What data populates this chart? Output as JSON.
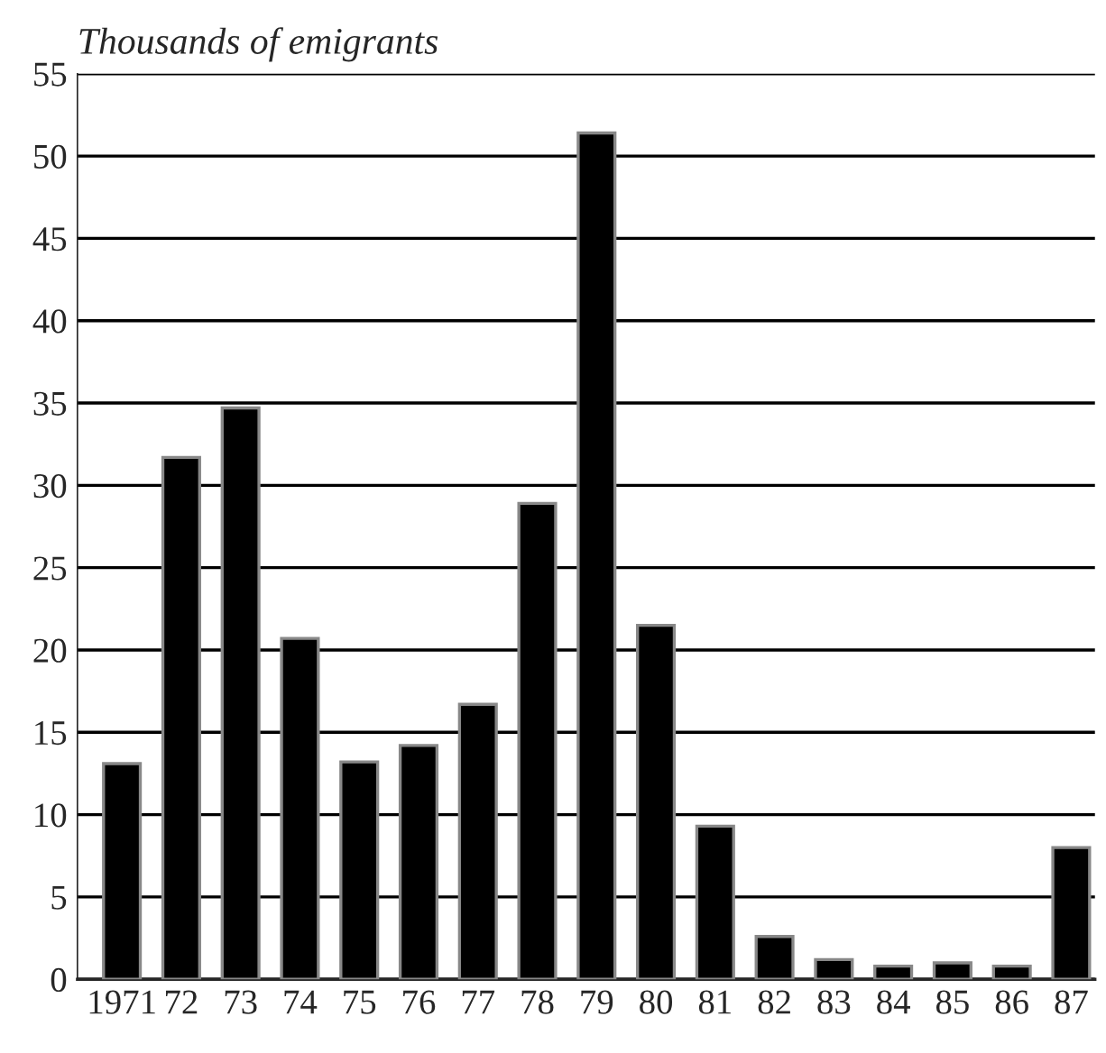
{
  "chart_data": {
    "type": "bar",
    "ylabel": "Thousands of emigrants",
    "categories": [
      "1971",
      "72",
      "73",
      "74",
      "75",
      "76",
      "77",
      "78",
      "79",
      "80",
      "81",
      "82",
      "83",
      "84",
      "85",
      "86",
      "87"
    ],
    "values": [
      13.1,
      31.7,
      34.7,
      20.7,
      13.2,
      14.2,
      16.7,
      28.9,
      51.4,
      21.5,
      9.3,
      2.6,
      1.2,
      0.8,
      1.0,
      0.8,
      8.0
    ],
    "color": "#000000",
    "ylim": [
      0,
      55
    ],
    "yticks": [
      0,
      5,
      10,
      15,
      20,
      25,
      30,
      35,
      40,
      45,
      50,
      55
    ],
    "grid": "y"
  }
}
